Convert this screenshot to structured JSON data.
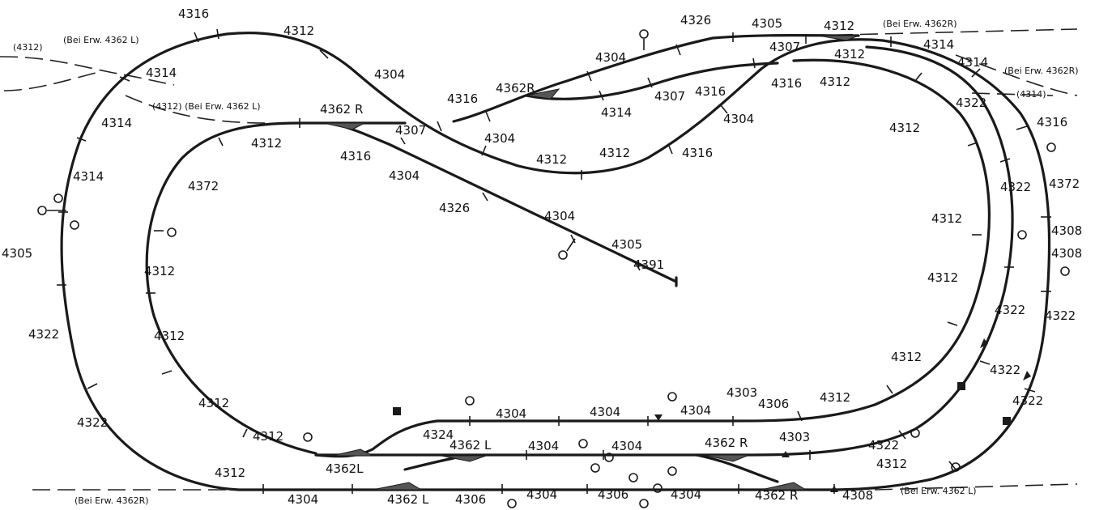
{
  "labels": {
    "t_4316_top": "4316",
    "t_4312_top": "4312",
    "t_4304_top": "4304",
    "t_4312p_l": "(4312)",
    "t_bei_l1": "(Bei Erw. 4362 L)",
    "t_4314_a": "4314",
    "t_4314_b": "4314",
    "t_4314_c": "4314",
    "t_4312p_l2": "(4312) (Bei Erw. 4362 L)",
    "t_4362r_1": "4362 R",
    "t_4307_1": "4307",
    "t_4312_a": "4312",
    "t_4316_a": "4316",
    "t_4304_a": "4304",
    "t_4372_l": "4372",
    "t_4326_a": "4326",
    "t_4304_b": "4304",
    "t_4305_a": "4305",
    "t_4391": "4391",
    "t_4305_l": "4305",
    "t_4312_l1": "4312",
    "t_4312_l2": "4312",
    "t_4322_l1": "4322",
    "t_4312_l3": "4312",
    "t_4322_l2": "4322",
    "t_4312_l4": "4312",
    "t_4312_l5": "4312",
    "t_bei_r1": "(Bei Erw. 4362R)",
    "t_4304_bl": "4304",
    "t_4362l_a": "4362L",
    "t_4362l_b": "4362 L",
    "t_4324": "4324",
    "t_4362l_c": "4362 L",
    "t_4306_a": "4306",
    "t_4304_c1": "4304",
    "t_4304_c2": "4304",
    "t_4304_c3": "4304",
    "t_4304_c4": "4304",
    "t_4304_c5": "4304",
    "t_4304_c6": "4304",
    "t_4306_b": "4306",
    "t_4304_c7": "4304",
    "t_4303_a": "4303",
    "t_4306_c": "4306",
    "t_4312_c": "4312",
    "t_4362r_b": "4362 R",
    "t_4303_b": "4303",
    "t_4362r_c": "4362 R",
    "t_4308_b": "4308",
    "t_bei_l2": "(Bei Erw. 4362 L)",
    "t_4322_r1": "4322",
    "t_4312_r1": "4312",
    "t_4322_r2": "4322",
    "t_4322_r3": "4322",
    "t_4322_r4": "4322",
    "t_4312_r2": "4312",
    "t_4312_r3": "4312",
    "t_4322_r5": "4322",
    "t_4322_r6": "4322",
    "t_4308_r1": "4308",
    "t_4308_r2": "4308",
    "t_4372_r": "4372",
    "t_4316_r": "4316",
    "t_4312_r4": "4312",
    "t_4312_r5": "4312",
    "t_4314_r1": "4314",
    "t_4314_r2": "4314",
    "t_bei_r2": "(Bei Erw. 4362R)",
    "t_4314p": "(4314)",
    "t_4326_t": "4326",
    "t_4305_t": "4305",
    "t_4312_t": "4312",
    "t_bei_r3": "(Bei Erw. 4362R)",
    "t_4304_t": "4304",
    "t_4362r_t": "4362R",
    "t_4316_t": "4316",
    "t_4314_t": "4314",
    "t_4307_t": "4307",
    "t_4316_t2": "4316",
    "t_4307_t2": "4307",
    "t_4312_t2": "4312",
    "t_4316_t3": "4316",
    "t_4304_t2": "4304",
    "t_4312_m1": "4312",
    "t_4312_m2": "4312",
    "t_4316_m": "4316",
    "t_4304_m": "4304"
  }
}
